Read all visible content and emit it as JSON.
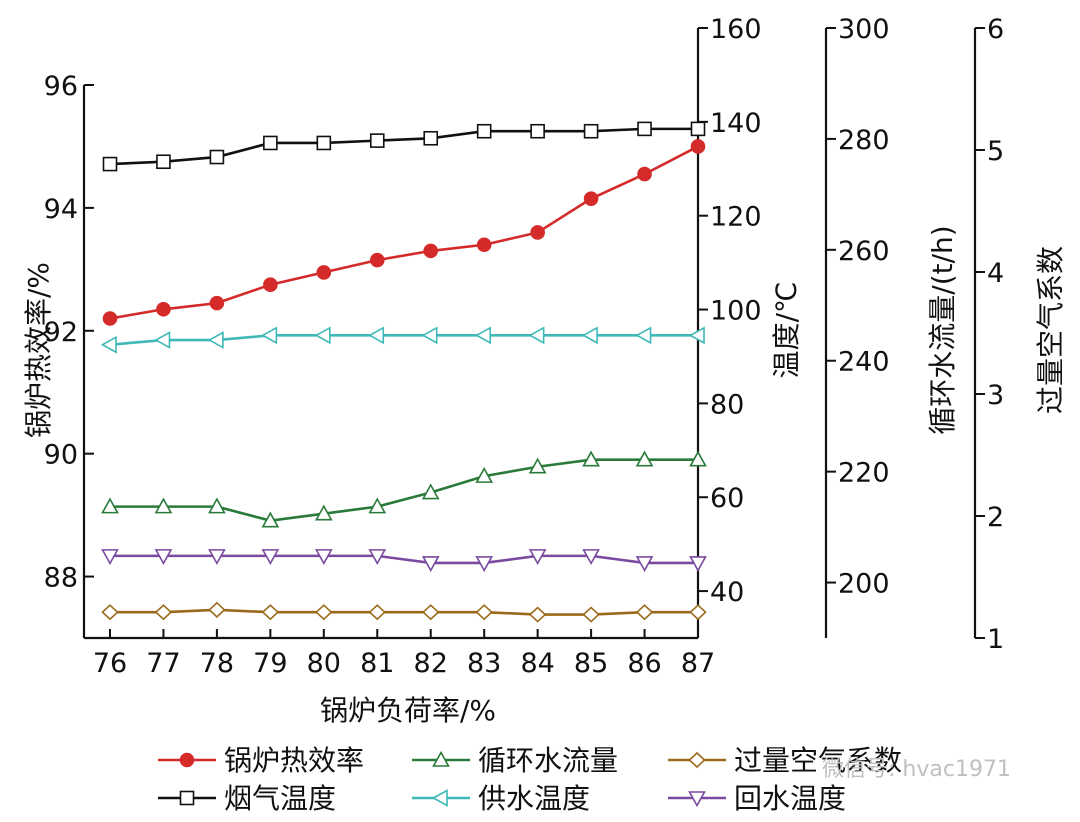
{
  "colors": {
    "efficiency": "#d42a2a",
    "flue_gas": "#111111",
    "circulation": "#2a7a3a",
    "supply": "#3fb8b8",
    "excess_air": "#9a6a1a",
    "return": "#7a4aa0",
    "axis": "#111111"
  },
  "watermark": "微信号: hvac1971",
  "chart_data": {
    "type": "line",
    "x": [
      76,
      77,
      78,
      79,
      80,
      81,
      82,
      83,
      84,
      85,
      86,
      87
    ],
    "xlabel": "锅炉负荷率/%",
    "axes": {
      "left": {
        "label": "锅炉热效率/%",
        "ylim": [
          87,
          96
        ],
        "ticks": [
          "96",
          "94",
          "92",
          "90",
          "88"
        ]
      },
      "temp": {
        "label": "温度/℃",
        "ylim": [
          30,
          160
        ],
        "ticks": [
          "160",
          "140",
          "120",
          "100",
          "80",
          "60",
          "40"
        ]
      },
      "flow": {
        "label": "循环水流量/(t/h)",
        "ylim": [
          190,
          300
        ],
        "ticks": [
          "300",
          "280",
          "260",
          "240",
          "220",
          "200"
        ]
      },
      "air": {
        "label": "过量空气系数",
        "ylim": [
          1,
          6
        ],
        "ticks": [
          "6",
          "5",
          "4",
          "3",
          "2",
          "1"
        ]
      }
    },
    "series": [
      {
        "name": "锅炉热效率",
        "axis": "left",
        "marker": "circle-filled",
        "color_key": "efficiency",
        "values": [
          92.2,
          92.35,
          92.45,
          92.75,
          92.95,
          93.15,
          93.3,
          93.4,
          93.6,
          94.15,
          94.55,
          95.0
        ]
      },
      {
        "name": "循环水流量",
        "axis": "temp",
        "marker": "triangle-up",
        "color_key": "circulation",
        "values": [
          58,
          58,
          58,
          55,
          56.5,
          58,
          61,
          64.5,
          66.5,
          68,
          68,
          68
        ]
      },
      {
        "name": "过量空气系数",
        "axis": "temp",
        "marker": "diamond",
        "color_key": "excess_air",
        "values": [
          35.5,
          35.5,
          36,
          35.5,
          35.5,
          35.5,
          35.5,
          35.5,
          35,
          35,
          35.5,
          35.5
        ]
      },
      {
        "name": "烟气温度",
        "axis": "temp",
        "marker": "square",
        "color_key": "flue_gas",
        "values": [
          131,
          131.5,
          132.5,
          135.5,
          135.5,
          136,
          136.5,
          138,
          138,
          138,
          138.5,
          138.5
        ]
      },
      {
        "name": "供水温度",
        "axis": "temp",
        "marker": "triangle-left",
        "color_key": "supply",
        "values": [
          92.5,
          93.5,
          93.5,
          94.5,
          94.5,
          94.5,
          94.5,
          94.5,
          94.5,
          94.5,
          94.5,
          94.5
        ]
      },
      {
        "name": "回水温度",
        "axis": "temp",
        "marker": "triangle-down",
        "color_key": "return",
        "values": [
          47.5,
          47.5,
          47.5,
          47.5,
          47.5,
          47.5,
          46,
          46,
          47.5,
          47.5,
          46,
          46
        ]
      }
    ],
    "legend_order": [
      "锅炉热效率",
      "循环水流量",
      "过量空气系数",
      "烟气温度",
      "供水温度",
      "回水温度"
    ],
    "legend_placement": "bottom",
    "grid": false
  }
}
